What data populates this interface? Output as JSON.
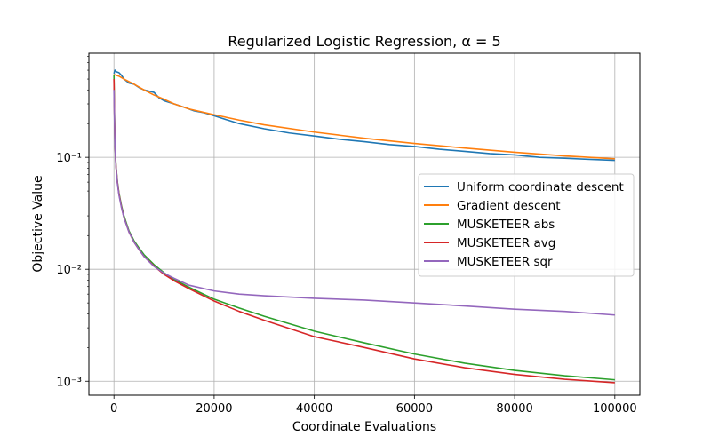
{
  "chart_data": {
    "type": "line",
    "title": "Regularized Logistic Regression, α = 5",
    "xlabel": "Coordinate Evaluations",
    "ylabel": "Objective Value",
    "xlim": [
      -5000,
      105000
    ],
    "ylim": [
      0.00075,
      0.85
    ],
    "yscale": "log",
    "grid": true,
    "legend_position": "center-right",
    "x_ticks": [
      0,
      20000,
      40000,
      60000,
      80000,
      100000
    ],
    "x_tick_labels": [
      "0",
      "20000",
      "40000",
      "60000",
      "80000",
      "100000"
    ],
    "y_ticks": [
      0.001,
      0.01,
      0.1
    ],
    "y_tick_labels": [
      "10⁻³",
      "10⁻²",
      "10⁻¹"
    ],
    "series": [
      {
        "name": "Uniform coordinate descent",
        "color": "#1f77b4",
        "x": [
          0,
          200,
          500,
          1000,
          1500,
          2000,
          3000,
          4000,
          5000,
          6000,
          7000,
          8000,
          9000,
          10000,
          12000,
          14000,
          16000,
          18000,
          20000,
          22000,
          25000,
          30000,
          35000,
          40000,
          45000,
          50000,
          55000,
          60000,
          65000,
          70000,
          75000,
          80000,
          85000,
          90000,
          95000,
          100000
        ],
        "y": [
          0.56,
          0.6,
          0.58,
          0.57,
          0.54,
          0.5,
          0.46,
          0.45,
          0.42,
          0.4,
          0.39,
          0.38,
          0.34,
          0.32,
          0.3,
          0.28,
          0.26,
          0.25,
          0.235,
          0.22,
          0.2,
          0.18,
          0.165,
          0.155,
          0.145,
          0.138,
          0.13,
          0.125,
          0.118,
          0.113,
          0.108,
          0.105,
          0.1,
          0.098,
          0.096,
          0.094
        ]
      },
      {
        "name": "Gradient descent",
        "color": "#ff7f0e",
        "x": [
          0,
          1000,
          2000,
          4000,
          6000,
          8000,
          10000,
          12000,
          15000,
          20000,
          25000,
          30000,
          40000,
          50000,
          60000,
          70000,
          80000,
          90000,
          100000
        ],
        "y": [
          0.55,
          0.53,
          0.5,
          0.45,
          0.4,
          0.36,
          0.33,
          0.3,
          0.27,
          0.24,
          0.215,
          0.195,
          0.168,
          0.148,
          0.133,
          0.121,
          0.111,
          0.103,
          0.097
        ]
      },
      {
        "name": "MUSKETEER abs",
        "color": "#2ca02c",
        "x": [
          0,
          100,
          200,
          400,
          700,
          1000,
          1500,
          2000,
          3000,
          4000,
          5000,
          6000,
          8000,
          10000,
          12000,
          15000,
          20000,
          25000,
          30000,
          40000,
          50000,
          60000,
          70000,
          80000,
          90000,
          100000
        ],
        "y": [
          0.55,
          0.25,
          0.14,
          0.085,
          0.06,
          0.048,
          0.037,
          0.03,
          0.022,
          0.018,
          0.0155,
          0.0135,
          0.011,
          0.0093,
          0.0081,
          0.0069,
          0.0054,
          0.0045,
          0.0038,
          0.0028,
          0.0022,
          0.00175,
          0.00145,
          0.00125,
          0.00112,
          0.00103
        ]
      },
      {
        "name": "MUSKETEER avg",
        "color": "#d62728",
        "x": [
          0,
          100,
          200,
          400,
          700,
          1000,
          1500,
          2000,
          3000,
          4000,
          5000,
          6000,
          8000,
          10000,
          12000,
          15000,
          20000,
          25000,
          30000,
          40000,
          50000,
          60000,
          70000,
          80000,
          90000,
          100000
        ],
        "y": [
          0.5,
          0.24,
          0.135,
          0.083,
          0.059,
          0.047,
          0.036,
          0.029,
          0.0215,
          0.0175,
          0.015,
          0.013,
          0.0107,
          0.009,
          0.0079,
          0.0067,
          0.0052,
          0.0042,
          0.0035,
          0.0025,
          0.002,
          0.00158,
          0.00132,
          0.00115,
          0.00104,
          0.00097
        ]
      },
      {
        "name": "MUSKETEER sqr",
        "color": "#9467bd",
        "x": [
          0,
          100,
          200,
          400,
          700,
          1000,
          1500,
          2000,
          3000,
          4000,
          5000,
          6000,
          8000,
          10000,
          12000,
          15000,
          20000,
          25000,
          30000,
          40000,
          50000,
          60000,
          70000,
          80000,
          90000,
          100000
        ],
        "y": [
          0.4,
          0.22,
          0.13,
          0.082,
          0.058,
          0.046,
          0.0355,
          0.0288,
          0.0215,
          0.0175,
          0.015,
          0.013,
          0.0106,
          0.0092,
          0.0083,
          0.0072,
          0.0064,
          0.006,
          0.0058,
          0.0055,
          0.0053,
          0.005,
          0.0047,
          0.0044,
          0.0042,
          0.0039
        ]
      }
    ]
  }
}
